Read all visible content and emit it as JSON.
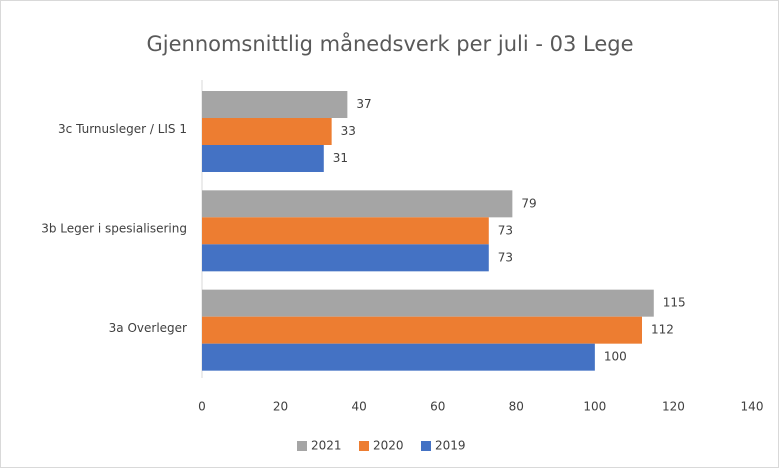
{
  "chart_data": {
    "type": "bar",
    "orientation": "horizontal",
    "title": "Gjennomsnittlig månedsverk per juli - 03 Lege",
    "categories": [
      "3c Turnusleger / LIS 1",
      "3b Leger i spesialisering",
      "3a Overleger"
    ],
    "series": [
      {
        "name": "2021",
        "color": "#a5a5a5",
        "values": [
          37,
          79,
          115
        ]
      },
      {
        "name": "2020",
        "color": "#ed7d31",
        "values": [
          33,
          73,
          112
        ]
      },
      {
        "name": "2019",
        "color": "#4472c4",
        "values": [
          31,
          73,
          100
        ]
      }
    ],
    "xlim": [
      0,
      140
    ],
    "xticks": [
      0,
      20,
      40,
      60,
      80,
      100,
      120,
      140
    ],
    "grid": false,
    "legend": "bottom",
    "data_labels": true
  }
}
